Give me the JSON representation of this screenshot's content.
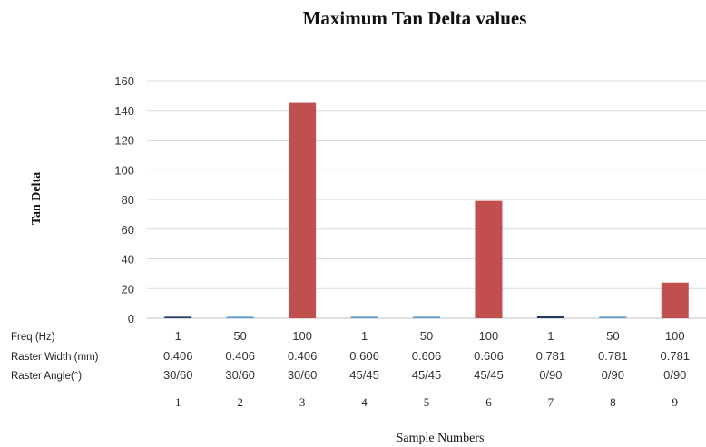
{
  "chart_data": {
    "type": "bar",
    "title": "Maximum Tan Delta values",
    "xlabel": "Sample Numbers",
    "ylabel": "Tan Delta",
    "ylim": [
      0,
      160
    ],
    "yticks": [
      "0",
      "20",
      "40",
      "60",
      "80",
      "100",
      "120",
      "140",
      "160"
    ],
    "grid": "horizontal",
    "row_labels": [
      "Freq (Hz)",
      "Raster Width (mm)",
      "Raster Angle(°)"
    ],
    "categories": [
      "1",
      "2",
      "3",
      "4",
      "5",
      "6",
      "7",
      "8",
      "9"
    ],
    "freq": [
      "1",
      "50",
      "100",
      "1",
      "50",
      "100",
      "1",
      "50",
      "100"
    ],
    "raster_width": [
      "0.406",
      "0.406",
      "0.406",
      "0.606",
      "0.606",
      "0.606",
      "0.781",
      "0.781",
      "0.781"
    ],
    "raster_angle": [
      "30/60",
      "30/60",
      "30/60",
      "45/45",
      "45/45",
      "45/45",
      "0/90",
      "0/90",
      "0/90"
    ],
    "values": [
      1,
      1,
      145,
      1,
      1,
      79,
      1.5,
      1,
      24
    ],
    "colors": [
      "#1f3864",
      "#5b9bd5",
      "#c0504d",
      "#5b9bd5",
      "#5b9bd5",
      "#c0504d",
      "#1f3864",
      "#5b9bd5",
      "#c0504d"
    ]
  }
}
